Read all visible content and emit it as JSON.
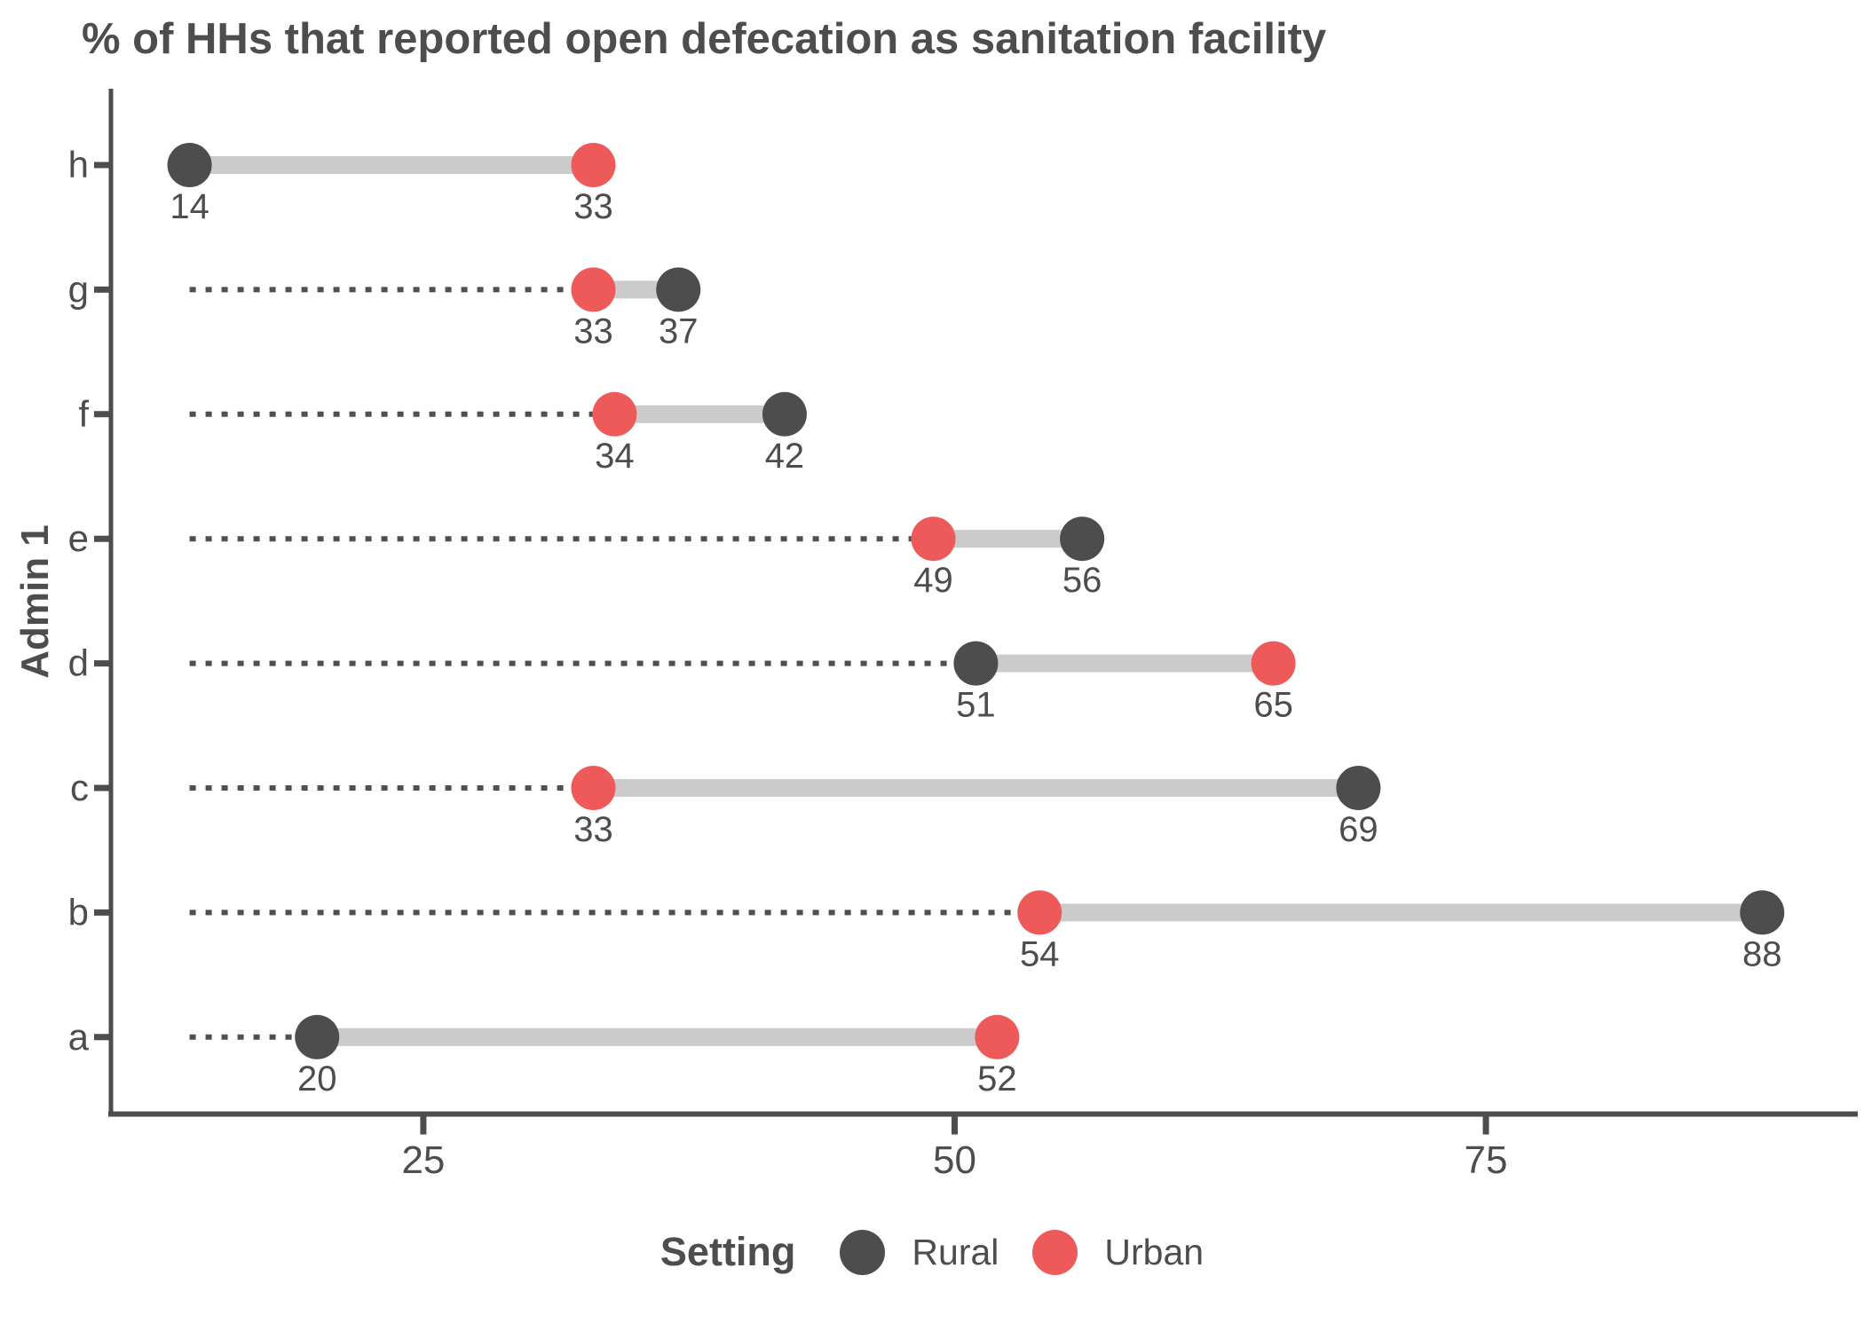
{
  "chart_data": {
    "type": "dumbbell",
    "title": "% of HHs that reported open defecation as sanitation facility",
    "xlabel": "",
    "ylabel": "Admin 1",
    "categories": [
      "h",
      "g",
      "f",
      "e",
      "d",
      "c",
      "b",
      "a"
    ],
    "series": [
      {
        "name": "Rural",
        "color": "#4d4d4d",
        "values": [
          14,
          37,
          42,
          56,
          51,
          69,
          88,
          20
        ]
      },
      {
        "name": "Urban",
        "color": "#ee5a5a",
        "values": [
          33,
          33,
          34,
          49,
          65,
          33,
          54,
          52
        ]
      }
    ],
    "value_labels": {
      "rural": [
        14,
        37,
        42,
        56,
        51,
        69,
        88,
        20
      ],
      "urban": [
        33,
        33,
        34,
        49,
        65,
        33,
        54,
        52
      ]
    },
    "x_ticks": [
      25,
      50,
      75
    ],
    "xlim": [
      10.3,
      92.5
    ],
    "leader_start": 14,
    "grid": "off",
    "connector_color": "#cbcbcb",
    "leader_color": "#4f4f4f",
    "axis_color": "#4d4d4d",
    "label_color": "#4d4d4d",
    "legend": {
      "title": "Setting",
      "position": "bottom",
      "items": [
        {
          "label": "Rural",
          "color": "#4d4d4d"
        },
        {
          "label": "Urban",
          "color": "#ee5a5a"
        }
      ]
    }
  }
}
